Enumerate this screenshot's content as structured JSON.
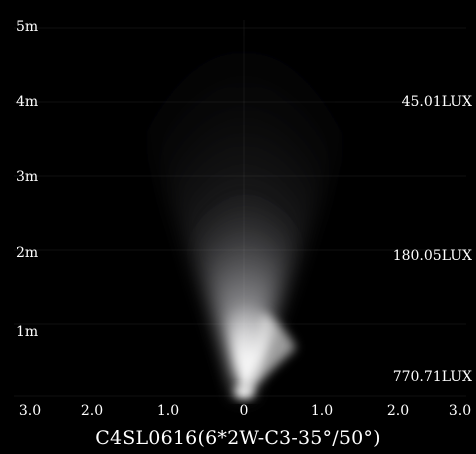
{
  "y_axis": {
    "labels": [
      "5m",
      "4m",
      "3m",
      "2m",
      "1m"
    ]
  },
  "x_axis": {
    "labels": [
      "3.0",
      "2.0",
      "1.0",
      "0",
      "1.0",
      "2.0",
      "3.0"
    ]
  },
  "lux_readings": [
    "45.01LUX",
    "180.05LUX",
    "770.71LUX"
  ],
  "model_label": "C4SL0616(6*2W-C3-35°/50°)",
  "colors": {
    "background": "#000000",
    "text": "#ffffff",
    "beam_core": "#ffffff",
    "beam_halo": "#e6e6ee"
  }
}
